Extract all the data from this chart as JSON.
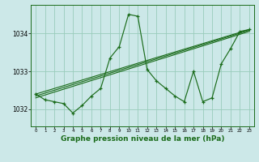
{
  "bg_color": "#cce8e8",
  "grid_color": "#99ccbb",
  "line_color": "#1a6b1a",
  "title": "Graphe pression niveau de la mer (hPa)",
  "title_fontsize": 6.5,
  "xlim": [
    -0.5,
    23.5
  ],
  "ylim": [
    1031.55,
    1034.75
  ],
  "yticks": [
    1032,
    1033,
    1034
  ],
  "xticks": [
    0,
    1,
    2,
    3,
    4,
    5,
    6,
    7,
    8,
    9,
    10,
    11,
    12,
    13,
    14,
    15,
    16,
    17,
    18,
    19,
    20,
    21,
    22,
    23
  ],
  "series1_x": [
    0,
    1,
    2,
    3,
    4,
    5,
    6,
    7,
    8,
    9,
    10,
    11,
    12,
    13,
    14,
    15,
    16,
    17,
    18,
    19,
    20,
    21,
    22,
    23
  ],
  "series1_y": [
    1032.4,
    1032.25,
    1032.2,
    1032.15,
    1031.9,
    1032.1,
    1032.35,
    1032.55,
    1033.35,
    1033.65,
    1034.5,
    1034.45,
    1033.05,
    1032.75,
    1032.55,
    1032.35,
    1032.2,
    1033.0,
    1032.2,
    1032.3,
    1033.2,
    1033.6,
    1034.05,
    1034.1
  ],
  "line2_x": [
    0,
    23
  ],
  "line2_y": [
    1032.4,
    1034.1
  ],
  "line3_x": [
    0,
    23
  ],
  "line3_y": [
    1032.35,
    1034.08
  ],
  "line4_x": [
    0,
    23
  ],
  "line4_y": [
    1032.3,
    1034.05
  ]
}
